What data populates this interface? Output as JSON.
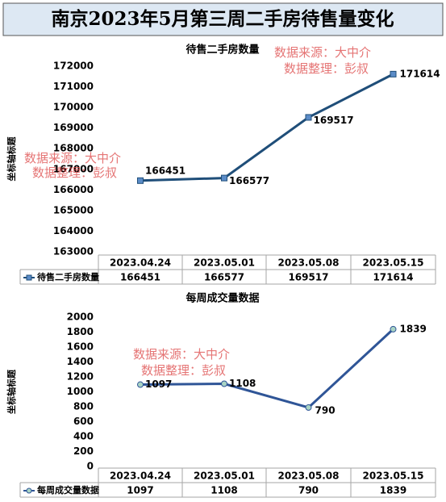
{
  "title": "南京2023年5月第三周二手房待售量变化",
  "watermarks": [
    "数据来源：大中介",
    "数据整理：彭叔"
  ],
  "chart_data": [
    {
      "type": "line",
      "title": "待售二手房数量",
      "y_label": "坐标轴标题",
      "categories": [
        "2023.04.24",
        "2023.05.01",
        "2023.05.08",
        "2023.05.15"
      ],
      "series": [
        {
          "name": "待售二手房数量",
          "color": "#1f4e79",
          "marker": "square",
          "marker_color": "#5b8cc8",
          "values": [
            166451,
            166577,
            169517,
            171614
          ]
        }
      ],
      "ylim": [
        163000,
        172000
      ],
      "yticks": [
        163000,
        164000,
        165000,
        166000,
        167000,
        168000,
        169000,
        170000,
        171000,
        172000
      ],
      "data_labels": true,
      "data_table": true
    },
    {
      "type": "line",
      "title": "每周成交量数据",
      "y_label": "坐标轴标题",
      "categories": [
        "2023.04.24",
        "2023.05.01",
        "2023.05.08",
        "2023.05.15"
      ],
      "series": [
        {
          "name": "每周成交量数据",
          "color": "#2f5597",
          "marker": "circle",
          "marker_color": "#a9d4c4",
          "values": [
            1097,
            1108,
            790,
            1839
          ]
        }
      ],
      "ylim": [
        0,
        2000
      ],
      "yticks": [
        0,
        200,
        400,
        600,
        800,
        1000,
        1200,
        1400,
        1600,
        1800,
        2000
      ],
      "data_labels": true,
      "data_table": true
    }
  ]
}
